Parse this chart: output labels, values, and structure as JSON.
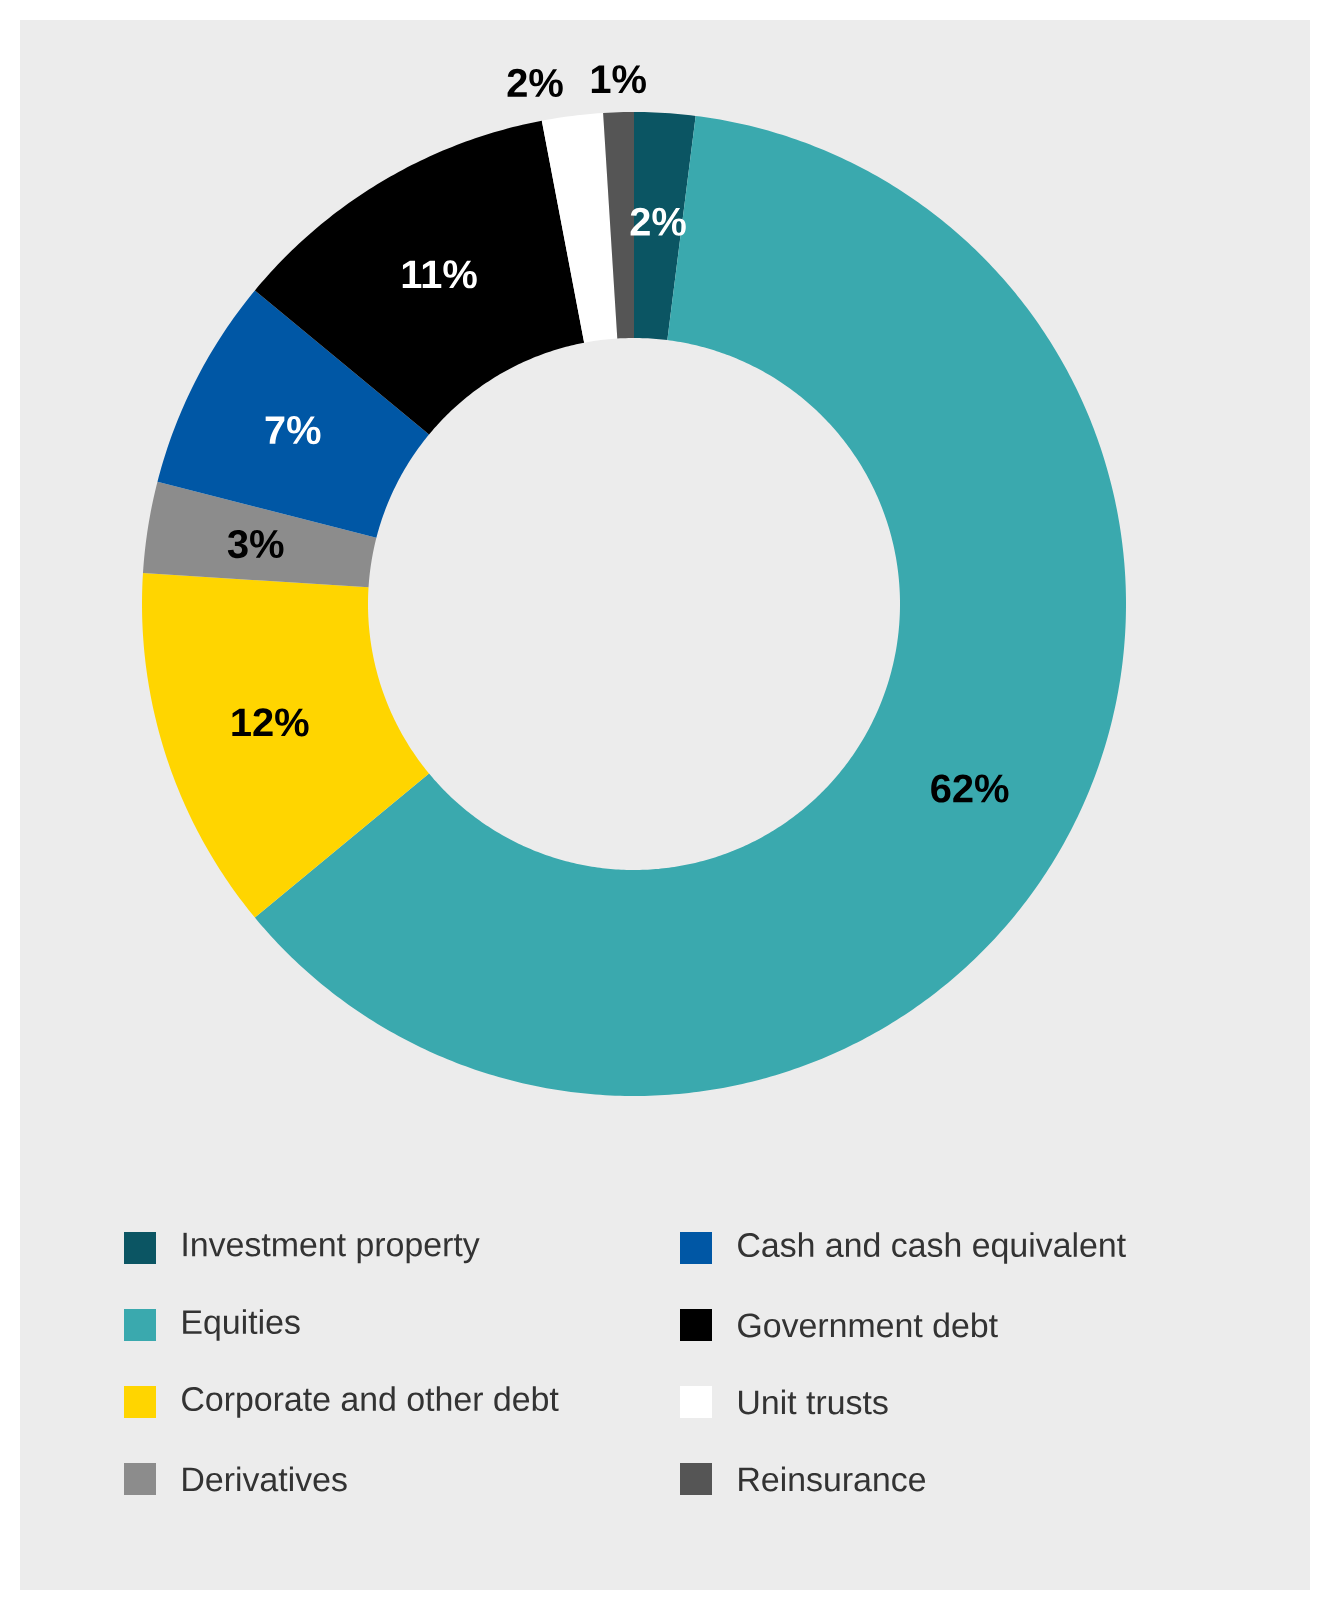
{
  "chart_data": {
    "type": "donut",
    "categories": [
      "Investment property",
      "Equities",
      "Corporate and other debt",
      "Derivatives",
      "Cash and cash equivalent",
      "Government debt",
      "Unit trusts",
      "Reinsurance"
    ],
    "values": [
      2,
      62,
      12,
      3,
      7,
      11,
      2,
      1
    ],
    "colors": [
      "#0b5563",
      "#3aa9ae",
      "#ffd500",
      "#8c8c8c",
      "#0057a5",
      "#000000",
      "#ffffff",
      "#555555"
    ],
    "value_labels": [
      "2%",
      "62%",
      "12%",
      "3%",
      "7%",
      "11%",
      "2%",
      "1%"
    ],
    "legend": "bottom"
  }
}
